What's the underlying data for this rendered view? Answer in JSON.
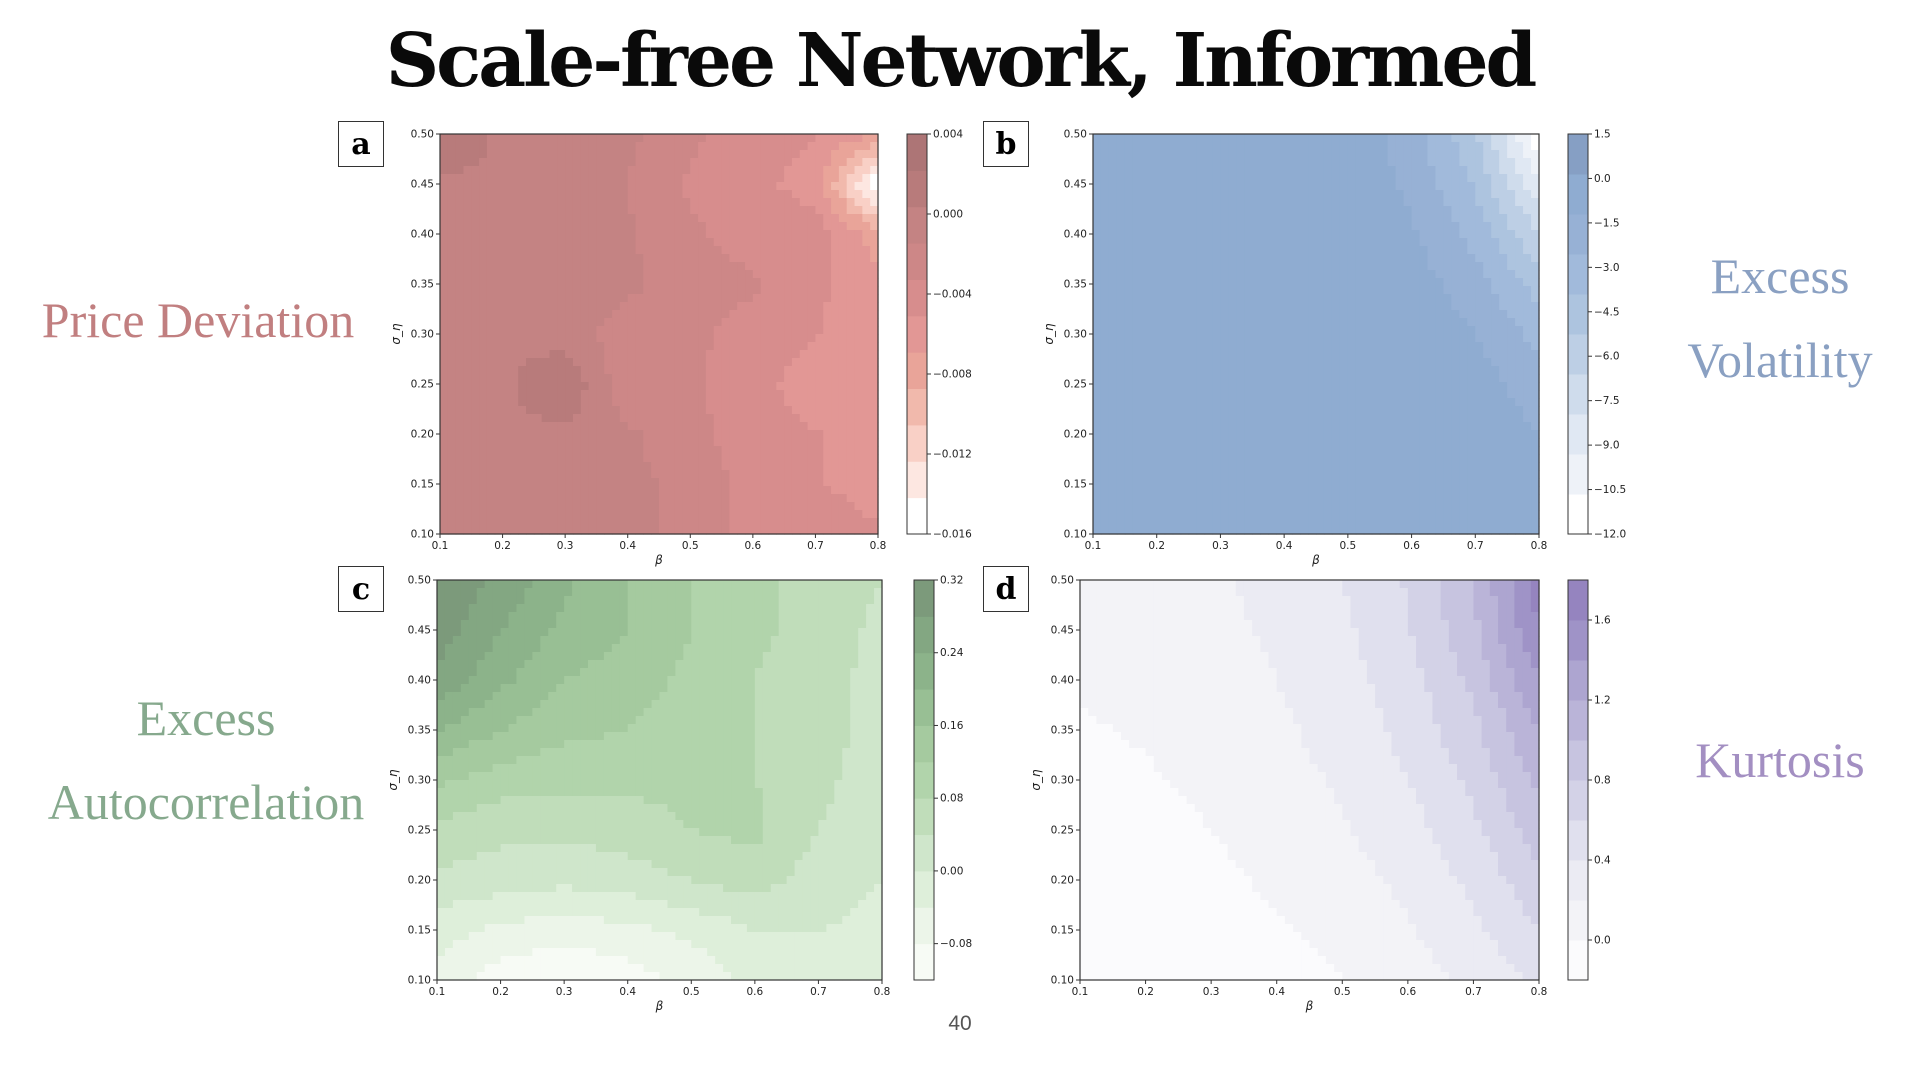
{
  "title": "Scale-free Network, Informed",
  "page_number": "40",
  "chart_data": [
    {
      "id": "a",
      "type": "heatmap",
      "panel_label": "a",
      "side_label": [
        "Price Deviation"
      ],
      "side_label_color": "#c17f80",
      "xlabel": "β",
      "ylabel": "σ_η",
      "xticks": [
        "0.1",
        "0.2",
        "0.3",
        "0.4",
        "0.5",
        "0.6",
        "0.7",
        "0.8"
      ],
      "yticks": [
        "0.10",
        "0.15",
        "0.20",
        "0.25",
        "0.30",
        "0.35",
        "0.40",
        "0.45",
        "0.50"
      ],
      "xlim": [
        0.1,
        0.8
      ],
      "ylim": [
        0.1,
        0.5
      ],
      "colorbar_ticks": [
        "0.004",
        "0.000",
        "−0.004",
        "−0.008",
        "−0.012",
        "−0.016"
      ],
      "colorbar_range": [
        -0.016,
        0.004
      ],
      "colors": [
        "#ffffff",
        "#fde7e1",
        "#f9d0c6",
        "#f1b9ac",
        "#e9a499",
        "#e29795",
        "#d78d8d",
        "#cd8787",
        "#c48383",
        "#b87b7b",
        "#ad7576"
      ],
      "x": [
        0.1,
        0.2,
        0.3,
        0.4,
        0.5,
        0.6,
        0.7,
        0.8
      ],
      "y": [
        0.1,
        0.15,
        0.2,
        0.25,
        0.3,
        0.35,
        0.4,
        0.45,
        0.5
      ],
      "z": [
        [
          0.0,
          0.0,
          -0.0005,
          -0.001,
          -0.0018,
          -0.004,
          -0.0045,
          -0.005
        ],
        [
          0.0,
          0.0,
          -0.0005,
          -0.001,
          -0.002,
          -0.004,
          -0.005,
          -0.0055
        ],
        [
          0.0,
          0.0,
          0.0,
          -0.0012,
          -0.0025,
          -0.0045,
          -0.005,
          -0.006
        ],
        [
          0.0,
          0.0,
          0.002,
          -0.0028,
          -0.003,
          -0.0045,
          -0.006,
          -0.0062
        ],
        [
          0.0,
          0.0,
          -0.0005,
          -0.0025,
          -0.0028,
          -0.004,
          -0.005,
          -0.007
        ],
        [
          0.0,
          0.0,
          0.0,
          -0.001,
          -0.0025,
          -0.003,
          -0.0045,
          -0.0065
        ],
        [
          0.0,
          0.0,
          0.0,
          -0.0012,
          -0.003,
          -0.004,
          -0.004,
          -0.008
        ],
        [
          0.0,
          0.0,
          0.0,
          -0.0015,
          -0.0035,
          -0.0045,
          -0.006,
          -0.016
        ],
        [
          0.002,
          0.0,
          0.0,
          -0.001,
          -0.003,
          -0.004,
          -0.005,
          -0.007
        ]
      ]
    },
    {
      "id": "b",
      "type": "heatmap",
      "panel_label": "b",
      "side_label": [
        "Excess",
        "Volatility"
      ],
      "side_label_color": "#8aa0c2",
      "xlabel": "β",
      "ylabel": "σ_η",
      "xticks": [
        "0.1",
        "0.2",
        "0.3",
        "0.4",
        "0.5",
        "0.6",
        "0.7",
        "0.8"
      ],
      "yticks": [
        "0.10",
        "0.15",
        "0.20",
        "0.25",
        "0.30",
        "0.35",
        "0.40",
        "0.45",
        "0.50"
      ],
      "xlim": [
        0.1,
        0.8
      ],
      "ylim": [
        0.1,
        0.5
      ],
      "colorbar_ticks": [
        "1.5",
        "0.0",
        "−1.5",
        "−3.0",
        "−4.5",
        "−6.0",
        "−7.5",
        "−9.0",
        "−10.5",
        "−12.0"
      ],
      "colorbar_range": [
        -12,
        1.5
      ],
      "colors": [
        "#ffffff",
        "#eef2f8",
        "#e0e8f3",
        "#cfdcec",
        "#bdcfe5",
        "#adc4df",
        "#a1badb",
        "#97b1d5",
        "#8facd1",
        "#869fc4"
      ],
      "x": [
        0.1,
        0.2,
        0.3,
        0.4,
        0.5,
        0.6,
        0.7,
        0.8
      ],
      "y": [
        0.1,
        0.15,
        0.2,
        0.25,
        0.3,
        0.35,
        0.4,
        0.45,
        0.5
      ],
      "z": [
        [
          0.0,
          0.0,
          0.0,
          0.0,
          0.0,
          0.0,
          0.0,
          -0.5
        ],
        [
          0.0,
          0.0,
          0.0,
          0.0,
          0.0,
          0.0,
          0.0,
          -0.8
        ],
        [
          0.0,
          0.0,
          0.0,
          0.0,
          0.0,
          0.0,
          -0.2,
          -1.2
        ],
        [
          0.0,
          0.0,
          0.0,
          0.0,
          0.0,
          0.0,
          -0.5,
          -2.0
        ],
        [
          0.0,
          0.0,
          0.0,
          0.0,
          0.0,
          -0.2,
          -1.2,
          -3.0
        ],
        [
          0.0,
          0.0,
          0.0,
          0.0,
          0.0,
          -0.5,
          -2.0,
          -4.5
        ],
        [
          0.0,
          0.0,
          0.0,
          0.0,
          0.0,
          -1.0,
          -3.0,
          -6.5
        ],
        [
          0.0,
          0.0,
          0.0,
          0.0,
          0.0,
          -1.5,
          -4.0,
          -9.0
        ],
        [
          0.0,
          0.0,
          0.0,
          0.0,
          -0.2,
          -2.0,
          -5.0,
          -12.0
        ]
      ]
    },
    {
      "id": "c",
      "type": "heatmap",
      "panel_label": "c",
      "side_label": [
        "Excess",
        "Autocorrelation"
      ],
      "side_label_color": "#86a98d",
      "xlabel": "β",
      "ylabel": "σ_η",
      "xticks": [
        "0.1",
        "0.2",
        "0.3",
        "0.4",
        "0.5",
        "0.6",
        "0.7",
        "0.8"
      ],
      "yticks": [
        "0.10",
        "0.15",
        "0.20",
        "0.25",
        "0.30",
        "0.35",
        "0.40",
        "0.45",
        "0.50"
      ],
      "xlim": [
        0.1,
        0.8
      ],
      "ylim": [
        0.1,
        0.5
      ],
      "colorbar_ticks": [
        "0.32",
        "0.24",
        "0.16",
        "0.08",
        "0.00",
        "−0.08"
      ],
      "colorbar_range": [
        -0.12,
        0.32
      ],
      "colors": [
        "#f7fbf5",
        "#ecf5e9",
        "#deefda",
        "#cfe6cb",
        "#c0ddba",
        "#b1d4ab",
        "#a5ca9f",
        "#98bf94",
        "#8cb38a",
        "#83a782",
        "#7c9a7b"
      ],
      "x": [
        0.1,
        0.2,
        0.3,
        0.4,
        0.5,
        0.6,
        0.7,
        0.8
      ],
      "y": [
        0.1,
        0.15,
        0.2,
        0.25,
        0.3,
        0.35,
        0.4,
        0.45,
        0.5
      ],
      "z": [
        [
          -0.06,
          -0.1,
          -0.12,
          -0.1,
          -0.07,
          -0.03,
          -0.02,
          -0.02
        ],
        [
          -0.02,
          -0.05,
          -0.06,
          -0.05,
          -0.03,
          0.0,
          0.0,
          -0.01
        ],
        [
          0.03,
          0.02,
          0.01,
          0.02,
          0.04,
          0.06,
          0.02,
          0.0
        ],
        [
          0.07,
          0.05,
          0.05,
          0.06,
          0.08,
          0.09,
          0.04,
          0.01
        ],
        [
          0.13,
          0.1,
          0.09,
          0.09,
          0.09,
          0.08,
          0.05,
          0.02
        ],
        [
          0.2,
          0.16,
          0.13,
          0.12,
          0.1,
          0.08,
          0.05,
          0.03
        ],
        [
          0.27,
          0.21,
          0.16,
          0.14,
          0.11,
          0.08,
          0.05,
          0.03
        ],
        [
          0.3,
          0.24,
          0.19,
          0.16,
          0.12,
          0.09,
          0.06,
          0.03
        ],
        [
          0.32,
          0.27,
          0.21,
          0.16,
          0.12,
          0.09,
          0.06,
          0.04
        ]
      ]
    },
    {
      "id": "d",
      "type": "heatmap",
      "panel_label": "d",
      "side_label": [
        "Kurtosis"
      ],
      "side_label_color": "#a38fc2",
      "xlabel": "β",
      "ylabel": "σ_η",
      "xticks": [
        "0.1",
        "0.2",
        "0.3",
        "0.4",
        "0.5",
        "0.6",
        "0.7",
        "0.8"
      ],
      "yticks": [
        "0.10",
        "0.15",
        "0.20",
        "0.25",
        "0.30",
        "0.35",
        "0.40",
        "0.45",
        "0.50"
      ],
      "xlim": [
        0.1,
        0.8
      ],
      "ylim": [
        0.1,
        0.5
      ],
      "colorbar_ticks": [
        "1.6",
        "1.2",
        "0.8",
        "0.4",
        "0.0"
      ],
      "colorbar_range": [
        -0.2,
        1.8
      ],
      "colors": [
        "#fbfbfd",
        "#f3f3f7",
        "#ebebf3",
        "#e0e0ee",
        "#d3d2e7",
        "#c7c4e0",
        "#bab4d8",
        "#ada5d0",
        "#9f93c7",
        "#9584bf"
      ],
      "x": [
        0.1,
        0.2,
        0.3,
        0.4,
        0.5,
        0.6,
        0.7,
        0.8
      ],
      "y": [
        0.1,
        0.15,
        0.2,
        0.25,
        0.3,
        0.35,
        0.4,
        0.45,
        0.5
      ],
      "z": [
        [
          -0.15,
          -0.14,
          -0.12,
          -0.08,
          0.0,
          0.1,
          0.25,
          0.45
        ],
        [
          -0.14,
          -0.12,
          -0.08,
          -0.02,
          0.06,
          0.18,
          0.35,
          0.6
        ],
        [
          -0.12,
          -0.09,
          -0.04,
          0.03,
          0.12,
          0.25,
          0.45,
          0.75
        ],
        [
          -0.1,
          -0.06,
          0.0,
          0.08,
          0.18,
          0.32,
          0.55,
          0.9
        ],
        [
          -0.06,
          -0.02,
          0.04,
          0.12,
          0.23,
          0.4,
          0.65,
          1.05
        ],
        [
          -0.02,
          0.02,
          0.08,
          0.16,
          0.28,
          0.46,
          0.75,
          1.2
        ],
        [
          0.02,
          0.06,
          0.12,
          0.2,
          0.32,
          0.52,
          0.85,
          1.4
        ],
        [
          0.05,
          0.09,
          0.15,
          0.23,
          0.36,
          0.58,
          0.95,
          1.6
        ],
        [
          0.07,
          0.11,
          0.17,
          0.26,
          0.4,
          0.62,
          1.0,
          1.7
        ]
      ]
    }
  ]
}
